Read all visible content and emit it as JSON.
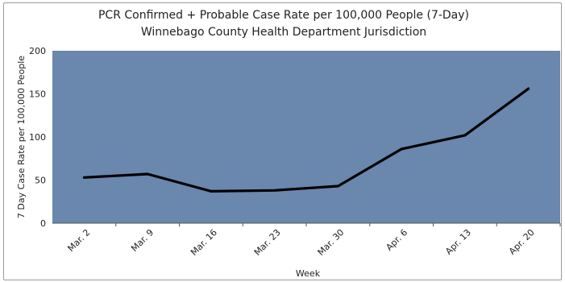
{
  "chart_data": {
    "type": "line",
    "title": "PCR Confirmed + Probable Case Rate per 100,000 People (7-Day)",
    "subtitle": "Winnebago County Health Department Jurisdiction",
    "xlabel": "Week",
    "ylabel": "7 Day Case Rate per 100,000 People",
    "categories": [
      "Mar. 2",
      "Mar. 9",
      "Mar. 16",
      "Mar. 23",
      "Mar. 30",
      "Apr. 6",
      "Apr. 13",
      "Apr. 20"
    ],
    "series": [
      {
        "values": [
          53,
          57,
          37,
          38,
          43,
          86,
          102,
          156
        ]
      }
    ],
    "ylim": [
      0,
      200
    ],
    "yticks": [
      "0",
      "50",
      "100",
      "150",
      "200"
    ],
    "grid": false,
    "legend": "none",
    "colors": {
      "plot_background": "#6a87ad",
      "line": "#000000"
    }
  }
}
